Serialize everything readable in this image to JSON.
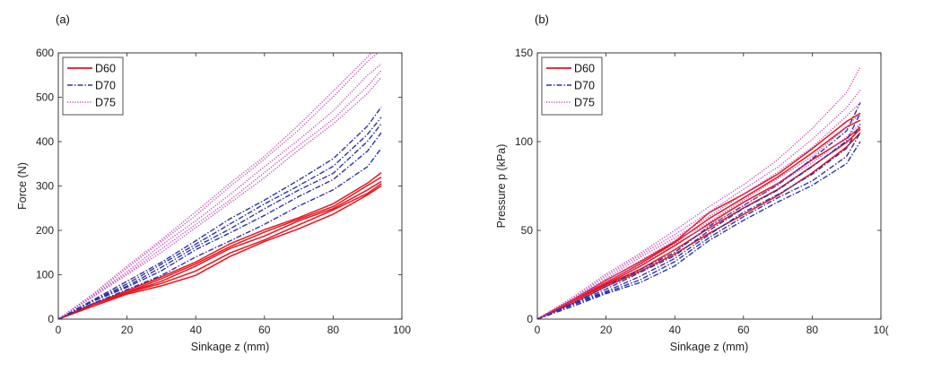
{
  "panels": [
    {
      "label": "(a)"
    },
    {
      "label": "(b)"
    }
  ],
  "chart_data": [
    {
      "type": "line",
      "panel": "(a)",
      "xlabel": "Sinkage z (mm)",
      "ylabel": "Force (N)",
      "xlim": [
        0,
        100
      ],
      "ylim": [
        0,
        600
      ],
      "xticks": [
        "0",
        "20",
        "40",
        "60",
        "80",
        "100"
      ],
      "yticks": [
        "0",
        "100",
        "200",
        "300",
        "400",
        "500",
        "600"
      ],
      "grid": false,
      "legend_position": "top-left",
      "series": [
        {
          "name": "D60",
          "color": "#e8141c",
          "dash": "solid",
          "curves": [
            {
              "x": [
                0,
                10,
                20,
                30,
                40,
                50,
                60,
                70,
                80,
                90,
                94
              ],
              "y": [
                0,
                30,
                55,
                75,
                100,
                140,
                175,
                205,
                235,
                280,
                300
              ]
            },
            {
              "x": [
                0,
                10,
                20,
                30,
                40,
                50,
                60,
                70,
                80,
                90,
                94
              ],
              "y": [
                0,
                32,
                58,
                82,
                108,
                148,
                180,
                212,
                245,
                285,
                305
              ]
            },
            {
              "x": [
                0,
                10,
                20,
                30,
                40,
                50,
                60,
                70,
                80,
                90,
                94
              ],
              "y": [
                0,
                33,
                60,
                86,
                118,
                160,
                188,
                220,
                250,
                292,
                310
              ]
            },
            {
              "x": [
                0,
                10,
                20,
                30,
                40,
                50,
                60,
                70,
                80,
                90,
                94
              ],
              "y": [
                0,
                34,
                62,
                90,
                124,
                165,
                195,
                225,
                255,
                300,
                320
              ]
            },
            {
              "x": [
                0,
                10,
                20,
                30,
                40,
                50,
                60,
                70,
                80,
                90,
                94
              ],
              "y": [
                0,
                35,
                64,
                94,
                130,
                170,
                200,
                230,
                260,
                305,
                330
              ]
            }
          ]
        },
        {
          "name": "D70",
          "color": "#2b34a6",
          "dash": "dashdot",
          "curves": [
            {
              "x": [
                0,
                10,
                20,
                30,
                40,
                50,
                60,
                70,
                80,
                90,
                94
              ],
              "y": [
                0,
                35,
                65,
                100,
                140,
                175,
                215,
                255,
                290,
                345,
                385
              ]
            },
            {
              "x": [
                0,
                10,
                20,
                30,
                40,
                50,
                60,
                70,
                80,
                90,
                94
              ],
              "y": [
                0,
                38,
                72,
                110,
                155,
                195,
                235,
                275,
                315,
                380,
                420
              ]
            },
            {
              "x": [
                0,
                10,
                20,
                30,
                40,
                50,
                60,
                70,
                80,
                90,
                94
              ],
              "y": [
                0,
                40,
                76,
                116,
                162,
                205,
                248,
                290,
                330,
                400,
                440
              ]
            },
            {
              "x": [
                0,
                10,
                20,
                30,
                40,
                50,
                60,
                70,
                80,
                90,
                94
              ],
              "y": [
                0,
                42,
                80,
                122,
                170,
                215,
                258,
                302,
                345,
                415,
                455
              ]
            },
            {
              "x": [
                0,
                10,
                20,
                30,
                40,
                50,
                60,
                70,
                80,
                90,
                94
              ],
              "y": [
                0,
                44,
                84,
                128,
                178,
                225,
                268,
                315,
                360,
                435,
                478
              ]
            }
          ]
        },
        {
          "name": "D75",
          "color": "#c34fb8",
          "dash": "dotted",
          "curves": [
            {
              "x": [
                0,
                10,
                20,
                30,
                40,
                50,
                60,
                70,
                80,
                90,
                94
              ],
              "y": [
                0,
                48,
                100,
                152,
                205,
                262,
                320,
                380,
                440,
                510,
                545
              ]
            },
            {
              "x": [
                0,
                10,
                20,
                30,
                40,
                50,
                60,
                70,
                80,
                90,
                94
              ],
              "y": [
                0,
                50,
                104,
                158,
                212,
                270,
                330,
                390,
                452,
                525,
                560
              ]
            },
            {
              "x": [
                0,
                10,
                20,
                30,
                40,
                50,
                60,
                70,
                80,
                90,
                94
              ],
              "y": [
                0,
                52,
                108,
                165,
                222,
                282,
                342,
                405,
                470,
                548,
                575
              ]
            },
            {
              "x": [
                0,
                10,
                20,
                30,
                40,
                50,
                60,
                70,
                80,
                90,
                93
              ],
              "y": [
                0,
                55,
                114,
                174,
                235,
                298,
                360,
                428,
                500,
                580,
                600
              ]
            },
            {
              "x": [
                0,
                10,
                20,
                30,
                40,
                50,
                60,
                70,
                80,
                90,
                91
              ],
              "y": [
                0,
                56,
                118,
                180,
                242,
                305,
                368,
                438,
                512,
                592,
                600
              ]
            }
          ]
        }
      ]
    },
    {
      "type": "line",
      "panel": "(b)",
      "xlabel": "Sinkage z (mm)",
      "ylabel": "Pressure p (kPa)",
      "xlim": [
        0,
        100
      ],
      "ylim": [
        0,
        150
      ],
      "xticks": [
        "0",
        "20",
        "40",
        "60",
        "80",
        "10("
      ],
      "yticks": [
        "0",
        "50",
        "100",
        "150"
      ],
      "grid": false,
      "legend_position": "top-left",
      "series": [
        {
          "name": "D60",
          "color": "#e8141c",
          "dash": "solid",
          "curves": [
            {
              "x": [
                0,
                10,
                20,
                30,
                40,
                50,
                60,
                70,
                80,
                90,
                94
              ],
              "y": [
                0,
                9,
                18,
                27,
                37,
                48,
                59,
                70,
                82,
                97,
                105
              ]
            },
            {
              "x": [
                0,
                10,
                20,
                30,
                40,
                50,
                60,
                70,
                80,
                90,
                94
              ],
              "y": [
                0,
                9.5,
                19,
                28.5,
                39,
                51,
                63,
                73,
                86,
                100,
                107
              ]
            },
            {
              "x": [
                0,
                10,
                20,
                30,
                40,
                50,
                60,
                70,
                80,
                90,
                94
              ],
              "y": [
                0,
                10,
                20,
                30,
                41,
                54,
                66,
                76,
                90,
                102,
                108
              ]
            },
            {
              "x": [
                0,
                10,
                20,
                30,
                40,
                50,
                60,
                70,
                80,
                90,
                94
              ],
              "y": [
                0,
                10.5,
                21,
                31,
                43,
                57,
                68,
                80,
                94,
                108,
                112
              ]
            },
            {
              "x": [
                0,
                10,
                20,
                30,
                40,
                50,
                60,
                70,
                80,
                90,
                94
              ],
              "y": [
                0,
                11,
                22,
                32,
                44,
                60,
                70,
                82,
                96,
                111,
                116
              ]
            }
          ]
        },
        {
          "name": "D70",
          "color": "#2b34a6",
          "dash": "dashdot",
          "curves": [
            {
              "x": [
                0,
                10,
                20,
                30,
                40,
                50,
                60,
                70,
                80,
                90,
                94
              ],
              "y": [
                0,
                7,
                14,
                21,
                30,
                44,
                56,
                66,
                75,
                88,
                100
              ]
            },
            {
              "x": [
                0,
                10,
                20,
                30,
                40,
                50,
                60,
                70,
                80,
                90,
                94
              ],
              "y": [
                0,
                7.5,
                15,
                22.5,
                32,
                46,
                58,
                68,
                78,
                92,
                105
              ]
            },
            {
              "x": [
                0,
                10,
                20,
                30,
                40,
                50,
                60,
                70,
                80,
                90,
                94
              ],
              "y": [
                0,
                8,
                16,
                24,
                34,
                48,
                60,
                70,
                82,
                96,
                110
              ]
            },
            {
              "x": [
                0,
                10,
                20,
                30,
                40,
                50,
                60,
                70,
                80,
                90,
                94
              ],
              "y": [
                0,
                8.5,
                17,
                26,
                36,
                50,
                62,
                73,
                86,
                100,
                116
              ]
            },
            {
              "x": [
                0,
                10,
                20,
                30,
                40,
                50,
                60,
                70,
                80,
                90,
                94
              ],
              "y": [
                0,
                9,
                18,
                28,
                38,
                52,
                64,
                76,
                90,
                106,
                122
              ]
            }
          ]
        },
        {
          "name": "D75",
          "color": "#c34fb8",
          "dash": "dotted",
          "curves": [
            {
              "x": [
                0,
                10,
                20,
                30,
                40,
                50,
                60,
                70,
                80,
                90,
                94
              ],
              "y": [
                0,
                10,
                21,
                31,
                42,
                53,
                64,
                76,
                88,
                103,
                110
              ]
            },
            {
              "x": [
                0,
                10,
                20,
                30,
                40,
                50,
                60,
                70,
                80,
                90,
                94
              ],
              "y": [
                0,
                10.5,
                22,
                33,
                44,
                55,
                67,
                79,
                92,
                108,
                116
              ]
            },
            {
              "x": [
                0,
                10,
                20,
                30,
                40,
                50,
                60,
                70,
                80,
                90,
                94
              ],
              "y": [
                0,
                11,
                23,
                34.5,
                46,
                58,
                70,
                83,
                97,
                114,
                122
              ]
            },
            {
              "x": [
                0,
                10,
                20,
                30,
                40,
                50,
                60,
                70,
                80,
                90,
                94
              ],
              "y": [
                0,
                11.5,
                24,
                36,
                48,
                60,
                73,
                86,
                101,
                119,
                129
              ]
            },
            {
              "x": [
                0,
                10,
                20,
                30,
                40,
                50,
                60,
                70,
                80,
                90,
                94
              ],
              "y": [
                0,
                12,
                25,
                37.5,
                50,
                63,
                76,
                90,
                107,
                128,
                142
              ]
            }
          ]
        }
      ]
    }
  ]
}
